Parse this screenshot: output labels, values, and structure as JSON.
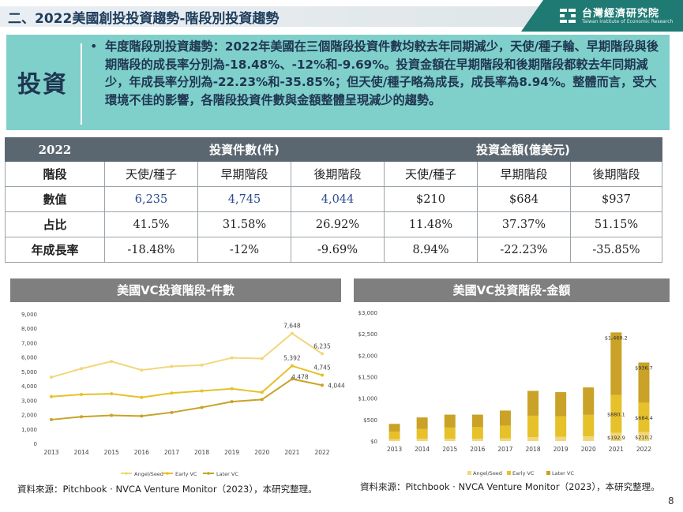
{
  "header": {
    "title": "二、2022美國創投投資趨勢-階段別投資趨勢",
    "logo_cn": "台灣經濟研究院",
    "logo_en": "Taiwan Institute of Economic Research"
  },
  "intro": {
    "label": "投資",
    "bullet": "•",
    "text": "年度階段別投資趨勢：2022年美國在三個階段投資件數均較去年同期減少，天使/種子輪、早期階段與後期階段的成長率分別為-18.48%、-12%和-9.69%。投資金額在早期階段和後期階段都較去年同期減少，年成長率分別為-22.23%和-35.85%；但天使/種子略為成長，成長率為8.94%。整體而言，受大環境不佳的影響，各階段投資件數與金額整體呈現減少的趨勢。"
  },
  "table": {
    "year": "2022",
    "group1": "投資件數(件)",
    "group2": "投資金額(億美元)",
    "stage_label": "階段",
    "stages": [
      "天使/種子",
      "早期階段",
      "後期階段",
      "天使/種子",
      "早期階段",
      "後期階段"
    ],
    "rows": [
      {
        "label": "數值",
        "cells": [
          "6,235",
          "4,745",
          "4,044",
          "$210",
          "$684",
          "$937"
        ]
      },
      {
        "label": "占比",
        "cells": [
          "41.5%",
          "31.58%",
          "26.92%",
          "11.48%",
          "37.37%",
          "51.15%"
        ]
      },
      {
        "label": "年成長率",
        "cells": [
          "-18.48%",
          "-12%",
          "-9.69%",
          "8.94%",
          "-22.23%",
          "-35.85%"
        ]
      }
    ]
  },
  "chart1_title": "美國VC投資階段-件數",
  "chart2_title": "美國VC投資階段-金額",
  "source1": "資料來源：Pitchbook · NVCA Venture Monitor（2023），本研究整理。",
  "source2": "資料來源：Pitchbook · NVCA Venture Monitor（2023），本研究整理。",
  "page_number": "8",
  "colors": {
    "angel": "#f2d77a",
    "early": "#e6c12a",
    "later": "#c9a227",
    "teal": "#7fcfcb",
    "header_dark": "#5b6770"
  },
  "chart_data": [
    {
      "type": "line",
      "title": "美國VC投資階段-件數",
      "x": [
        "2013",
        "2014",
        "2015",
        "2016",
        "2017",
        "2018",
        "2019",
        "2020",
        "2021",
        "2022"
      ],
      "yticks": [
        "0",
        "1,000",
        "2,000",
        "3,000",
        "4,000",
        "5,000",
        "6,000",
        "7,000",
        "8,000",
        "9,000"
      ],
      "ylim": [
        0,
        9000
      ],
      "series": [
        {
          "name": "Angel/Seed",
          "values": [
            4600,
            5200,
            5700,
            5100,
            5350,
            5450,
            5950,
            5900,
            7648,
            6235
          ]
        },
        {
          "name": "Early VC",
          "values": [
            3250,
            3400,
            3450,
            3200,
            3500,
            3650,
            3800,
            3550,
            5392,
            4745
          ]
        },
        {
          "name": "Later VC",
          "values": [
            1650,
            1850,
            1950,
            1900,
            2150,
            2500,
            2900,
            3050,
            4478,
            4044
          ]
        }
      ],
      "data_labels": [
        {
          "series": 0,
          "index": 8,
          "text": "7,648"
        },
        {
          "series": 0,
          "index": 9,
          "text": "6,235"
        },
        {
          "series": 1,
          "index": 8,
          "text": "5,392"
        },
        {
          "series": 1,
          "index": 9,
          "text": "4,745"
        },
        {
          "series": 2,
          "index": 8,
          "text": "4,478"
        },
        {
          "series": 2,
          "index": 9,
          "text": "4,044"
        }
      ],
      "legend": "bottom"
    },
    {
      "type": "bar",
      "stacked": true,
      "title": "美國VC投資階段-金額",
      "categories": [
        "2013",
        "2014",
        "2015",
        "2016",
        "2017",
        "2018",
        "2019",
        "2020",
        "2021",
        "2022"
      ],
      "yticks": [
        "$0",
        "$500",
        "$1,000",
        "$1,500",
        "$2,000",
        "$2,500",
        "$3,000"
      ],
      "ylim": [
        0,
        3000
      ],
      "series": [
        {
          "name": "Angel/Seed",
          "values": [
            40,
            50,
            55,
            55,
            60,
            90,
            100,
            110,
            192.9,
            210.2
          ]
        },
        {
          "name": "Early VC",
          "values": [
            180,
            230,
            260,
            270,
            300,
            500,
            480,
            500,
            880.1,
            684.4
          ]
        },
        {
          "name": "Later VC",
          "values": [
            180,
            270,
            300,
            290,
            350,
            580,
            560,
            640,
            1460.2,
            936.7
          ]
        }
      ],
      "data_labels": [
        {
          "series": 2,
          "index": 8,
          "text": "$1,460.2"
        },
        {
          "series": 1,
          "index": 8,
          "text": "$880.1"
        },
        {
          "series": 0,
          "index": 8,
          "text": "$192.9"
        },
        {
          "series": 2,
          "index": 9,
          "text": "$936.7"
        },
        {
          "series": 1,
          "index": 9,
          "text": "$684.4"
        },
        {
          "series": 0,
          "index": 9,
          "text": "$210.2"
        }
      ],
      "legend": "bottom"
    }
  ]
}
